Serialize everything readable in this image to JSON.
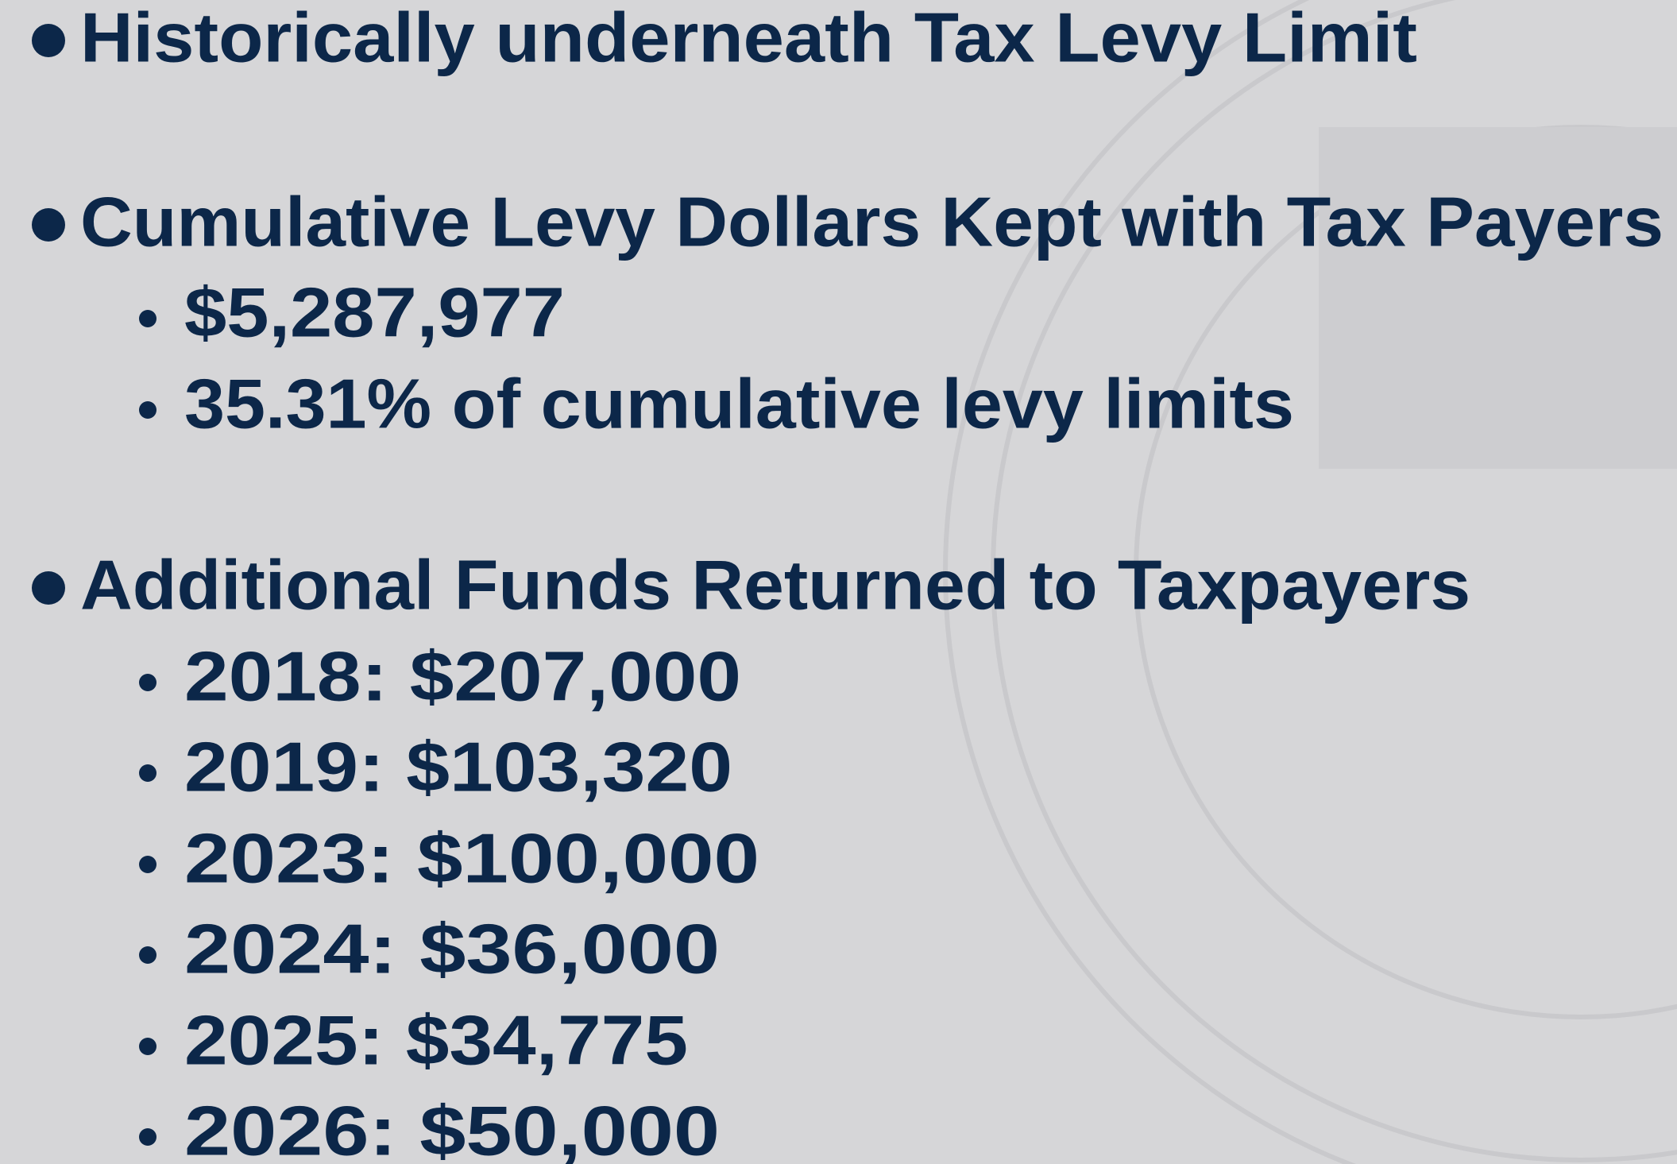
{
  "bullets": [
    {
      "text": "Historically underneath Tax Levy Limit",
      "subitems": []
    },
    {
      "text": "Cumulative Levy Dollars Kept with Tax Payers",
      "subitems": [
        "$5,287,977",
        "35.31% of cumulative levy limits"
      ]
    },
    {
      "text": "Additional Funds Returned to Taxpayers",
      "subitems": [
        "2018: $207,000",
        "2019: $103,320",
        "2023: $100,000",
        "2024: $36,000",
        "2025: $34,775",
        "2026: $50,000"
      ]
    }
  ]
}
